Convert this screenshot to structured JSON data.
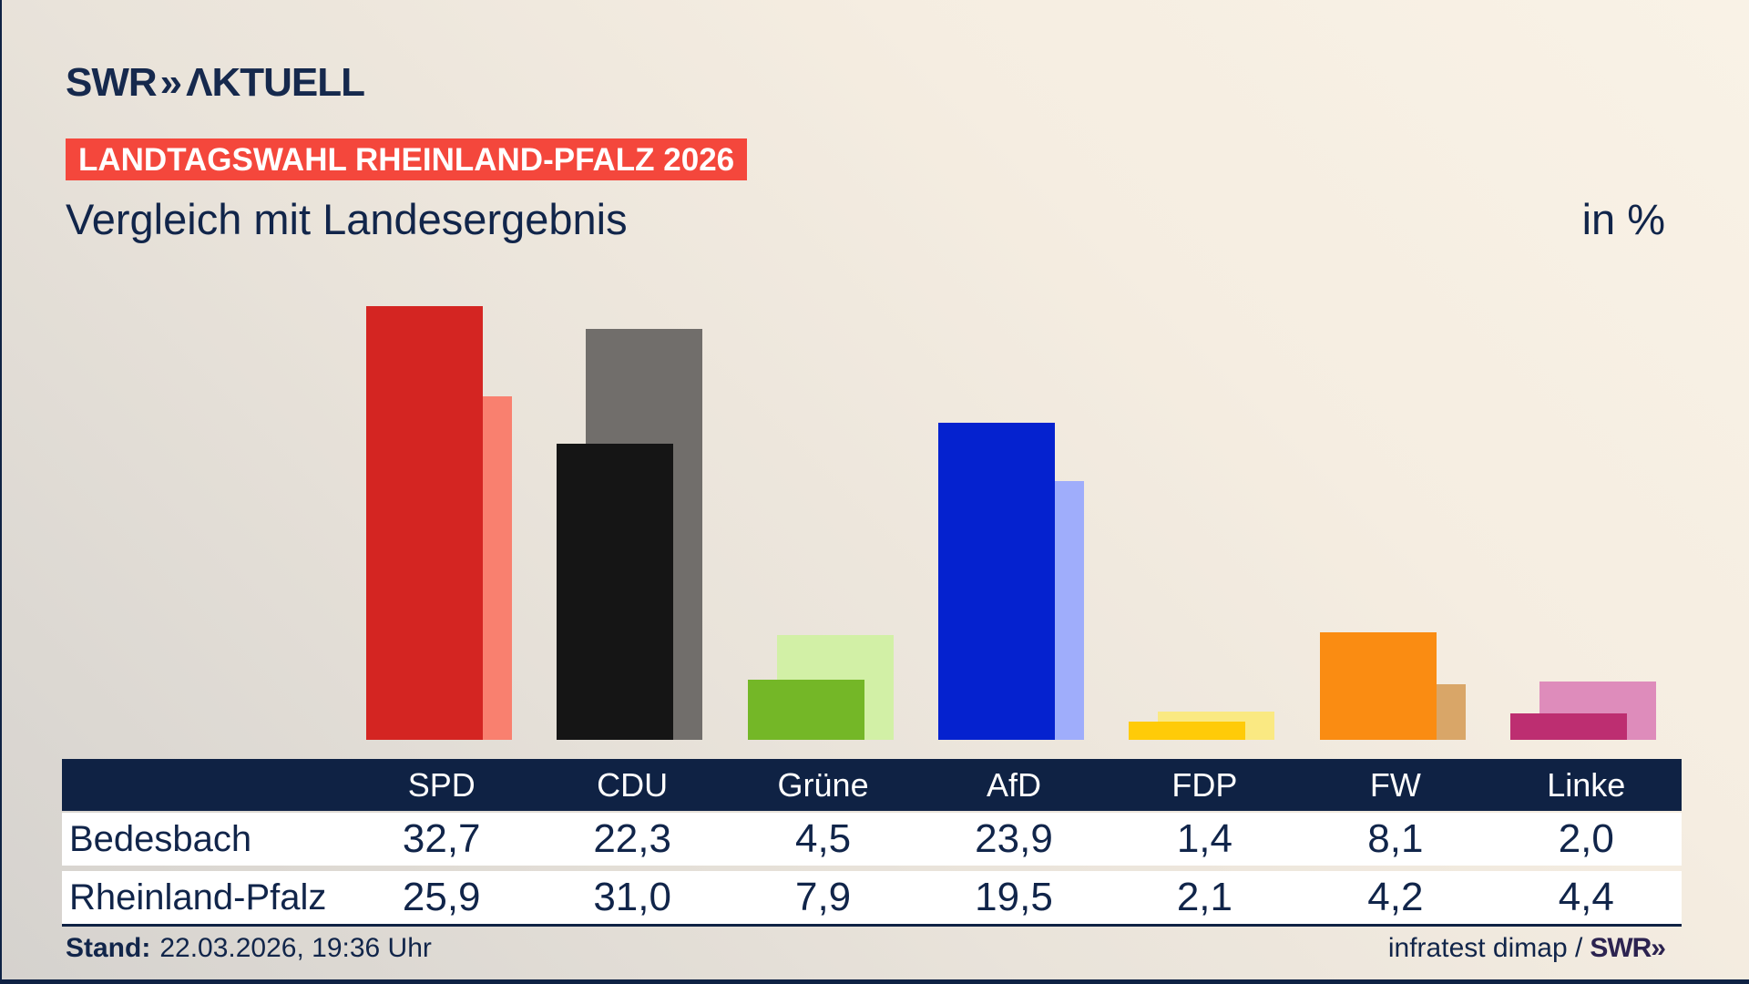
{
  "header": {
    "logo": {
      "swr": "SWR",
      "chevrons": "»",
      "aktuell": "ΛKTUELL"
    },
    "badge": "LANDTAGSWAHL RHEINLAND-PFALZ 2026",
    "badge_color": "#f4473c",
    "title": "Vergleich mit Landesergebnis",
    "unit_label": "in %"
  },
  "chart_data": {
    "type": "bar",
    "categories": [
      "SPD",
      "CDU",
      "Grüne",
      "AfD",
      "FDP",
      "FW",
      "Linke"
    ],
    "series": [
      {
        "name": "Bedesbach",
        "values": [
          32.7,
          22.3,
          4.5,
          23.9,
          1.4,
          8.1,
          2.0
        ]
      },
      {
        "name": "Rheinland-Pfalz",
        "values": [
          25.9,
          31.0,
          7.9,
          19.5,
          2.1,
          4.2,
          4.4
        ]
      }
    ],
    "bar_colors": [
      {
        "party": "SPD",
        "front": "#d42522",
        "back": "#f9806f"
      },
      {
        "party": "CDU",
        "front": "#151515",
        "back": "#716e6b"
      },
      {
        "party": "Grüne",
        "front": "#74b727",
        "back": "#d2f0a6"
      },
      {
        "party": "AfD",
        "front": "#0522cf",
        "back": "#9fadfb"
      },
      {
        "party": "FDP",
        "front": "#ffcb08",
        "back": "#fae982"
      },
      {
        "party": "FW",
        "front": "#fa8c12",
        "back": "#d9a668"
      },
      {
        "party": "Linke",
        "front": "#bd2e71",
        "back": "#de8cbb"
      }
    ],
    "title": "Vergleich mit Landesergebnis",
    "ylabel": "in %",
    "ylim": [
      0,
      35
    ],
    "grid": false,
    "legend_position": "table-below"
  },
  "table": {
    "columns": [
      "SPD",
      "CDU",
      "Grüne",
      "AfD",
      "FDP",
      "FW",
      "Linke"
    ],
    "rows": [
      {
        "label": "Bedesbach",
        "values": [
          "32,7",
          "22,3",
          "4,5",
          "23,9",
          "1,4",
          "8,1",
          "2,0"
        ]
      },
      {
        "label": "Rheinland-Pfalz",
        "values": [
          "25,9",
          "31,0",
          "7,9",
          "19,5",
          "2,1",
          "4,2",
          "4,4"
        ]
      }
    ]
  },
  "footer": {
    "stand_label": "Stand:",
    "stand_value": "22.03.2026, 19:36 Uhr",
    "source": "infratest dimap /",
    "source_logo": "SWR»"
  },
  "colors": {
    "navy": "#0f2244",
    "text": "#11254a",
    "badge_red": "#f4473c",
    "row_bg": "#ffffff"
  }
}
